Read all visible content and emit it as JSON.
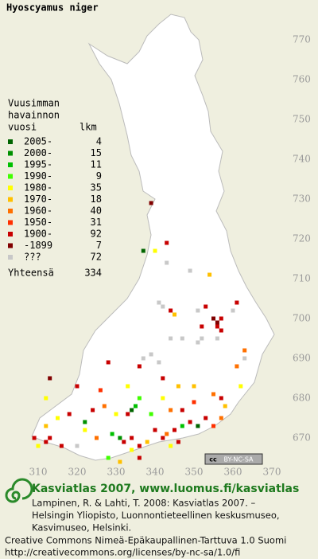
{
  "title": "Hyoscyamus niger",
  "grid": {
    "x_labels": [
      310,
      320,
      330,
      340,
      350,
      360,
      370
    ],
    "y_labels": [
      770,
      760,
      750,
      740,
      730,
      720,
      710,
      700,
      690,
      680,
      670
    ]
  },
  "legend": {
    "heading": [
      "Vuusimman",
      "havainnon",
      "vuosi"
    ],
    "count_heading": "lkm",
    "items": [
      {
        "label": "2005-",
        "count": 4,
        "color": "#006400",
        "points": [
          [
            337,
            717
          ],
          [
            334,
            677
          ],
          [
            351,
            673
          ]
        ]
      },
      {
        "label": "2000-",
        "count": 15,
        "color": "#009000",
        "points": [
          [
            322,
            674
          ],
          [
            331,
            670
          ]
        ]
      },
      {
        "label": "1995-",
        "count": 11,
        "color": "#00c000",
        "points": [
          [
            335,
            678
          ],
          [
            329,
            671
          ],
          [
            347,
            673
          ]
        ]
      },
      {
        "label": "1990-",
        "count": 9,
        "color": "#40ff00",
        "points": [
          [
            336,
            680
          ],
          [
            339,
            676
          ],
          [
            328,
            665
          ]
        ]
      },
      {
        "label": "1980-",
        "count": 35,
        "color": "#ffff00",
        "points": [
          [
            340,
            717
          ],
          [
            362,
            683
          ],
          [
            342,
            680
          ],
          [
            330,
            676
          ],
          [
            315,
            675
          ],
          [
            310,
            668
          ],
          [
            322,
            672
          ],
          [
            334,
            667
          ],
          [
            333,
            683
          ],
          [
            312,
            680
          ],
          [
            344,
            668
          ]
        ]
      },
      {
        "label": "1970-",
        "count": 18,
        "color": "#ffc000",
        "points": [
          [
            354,
            711
          ],
          [
            345,
            701
          ],
          [
            346,
            683
          ],
          [
            350,
            683
          ],
          [
            312,
            673
          ],
          [
            338,
            669
          ],
          [
            358,
            678
          ],
          [
            331,
            664
          ]
        ]
      },
      {
        "label": "1960-",
        "count": 40,
        "color": "#ff7000",
        "points": [
          [
            363,
            692
          ],
          [
            361,
            688
          ],
          [
            355,
            681
          ],
          [
            327,
            678
          ],
          [
            325,
            670
          ],
          [
            343,
            671
          ],
          [
            357,
            675
          ],
          [
            344,
            677
          ]
        ]
      },
      {
        "label": "1950-",
        "count": 31,
        "color": "#ff3000",
        "points": [
          [
            355,
            673
          ],
          [
            326,
            682
          ],
          [
            350,
            679
          ]
        ]
      },
      {
        "label": "1900-",
        "count": 92,
        "color": "#c80000",
        "points": [
          [
            343,
            719
          ],
          [
            344,
            702
          ],
          [
            352,
            698
          ],
          [
            353,
            703
          ],
          [
            357,
            700
          ],
          [
            356,
            698
          ],
          [
            357,
            697
          ],
          [
            361,
            704
          ],
          [
            328,
            689
          ],
          [
            336,
            688
          ],
          [
            342,
            685
          ],
          [
            357,
            680
          ],
          [
            333,
            676
          ],
          [
            324,
            677
          ],
          [
            318,
            676
          ],
          [
            309,
            670
          ],
          [
            312,
            669
          ],
          [
            313,
            670
          ],
          [
            316,
            668
          ],
          [
            332,
            669
          ],
          [
            336,
            668
          ],
          [
            340,
            672
          ],
          [
            342,
            670
          ],
          [
            345,
            672
          ],
          [
            349,
            674
          ],
          [
            353,
            675
          ],
          [
            320,
            683
          ],
          [
            347,
            677
          ],
          [
            336,
            665
          ],
          [
            334,
            670
          ],
          [
            346,
            669
          ]
        ]
      },
      {
        "label": "-1899",
        "count": 7,
        "color": "#800000",
        "points": [
          [
            339,
            729
          ],
          [
            355,
            700
          ],
          [
            356,
            699
          ],
          [
            313,
            685
          ]
        ]
      },
      {
        "label": "???",
        "count": 72,
        "color": "#c8c8c8",
        "points": [
          [
            343,
            714
          ],
          [
            349,
            712
          ],
          [
            341,
            704
          ],
          [
            342,
            703
          ],
          [
            351,
            702
          ],
          [
            360,
            702
          ],
          [
            356,
            695
          ],
          [
            351,
            694
          ],
          [
            352,
            695
          ],
          [
            347,
            695
          ],
          [
            344,
            695
          ],
          [
            339,
            691
          ],
          [
            337,
            690
          ],
          [
            341,
            689
          ],
          [
            363,
            690
          ],
          [
            320,
            668
          ]
        ]
      }
    ],
    "total_label": "Yhteensä",
    "total": 334
  },
  "badge": {
    "cc": "cc",
    "text": "BY-NC-SA"
  },
  "footer": {
    "heading": "Kasviatlas 2007, www.luomus.fi/kasviatlas",
    "lines": [
      "Lampinen, R. & Lahti, T. 2008: Kasviatlas 2007. –",
      "Helsingin Yliopisto, Luonnontieteellinen keskusmuseo,",
      "Kasvimuseo, Helsinki."
    ],
    "license": [
      "Creative Commons Nimeä-Epäkaupallinen-Tarttuva 1.0 Suomi",
      "http://creativecommons.org/licenses/by-nc-sa/1.0/fi"
    ]
  }
}
